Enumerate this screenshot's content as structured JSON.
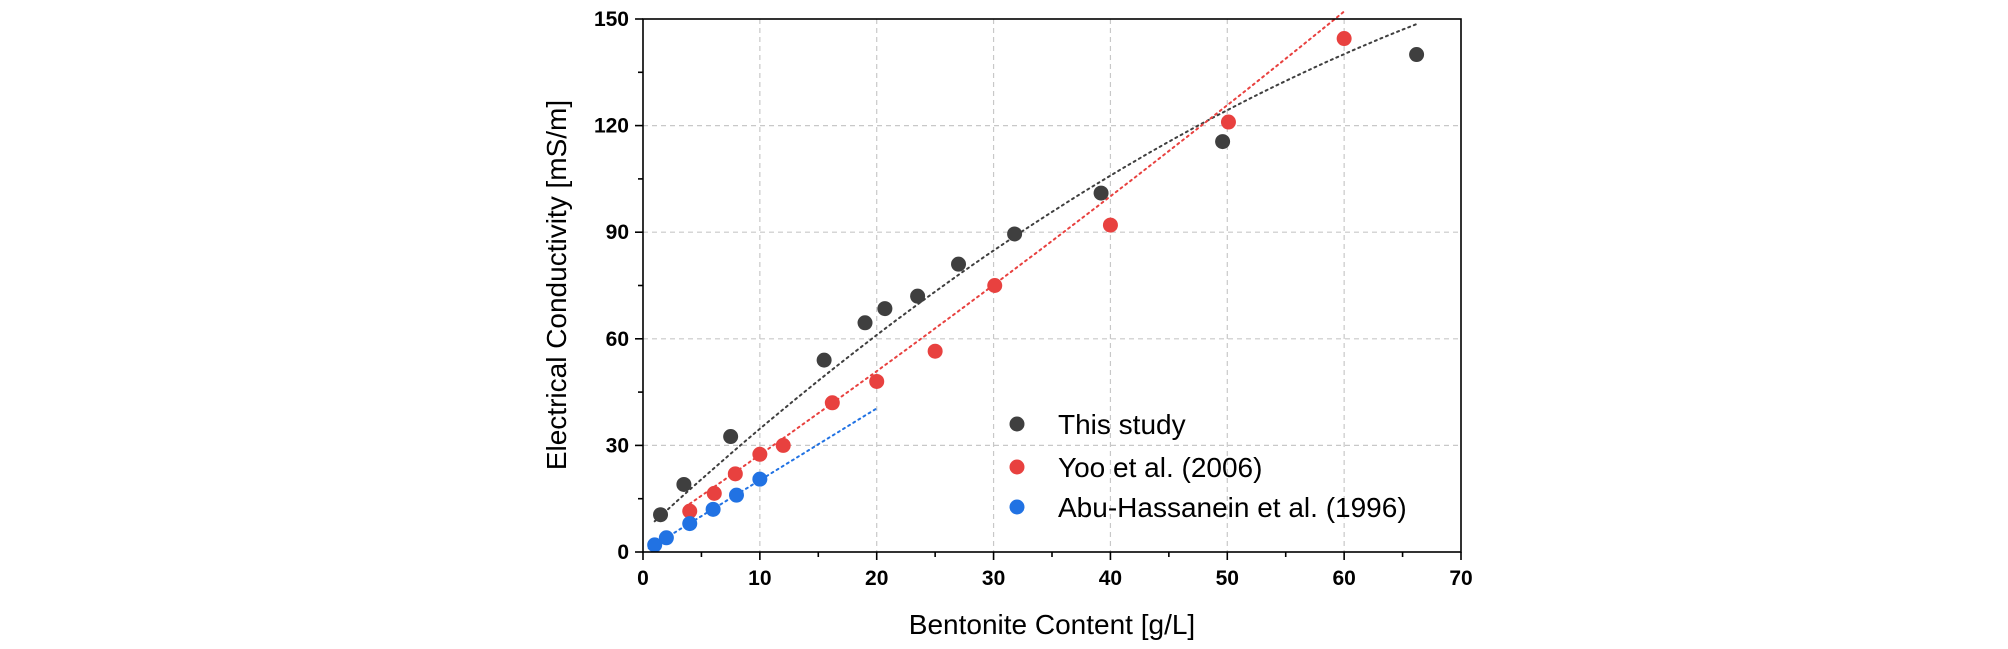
{
  "chart_data": {
    "type": "scatter",
    "xlabel": "Bentonite Content [g/L]",
    "ylabel": "Electrical Conductivity [mS/m]",
    "xlim": [
      0,
      70
    ],
    "ylim": [
      0,
      150
    ],
    "xticks": [
      0,
      10,
      20,
      30,
      40,
      50,
      60,
      70
    ],
    "yticks": [
      0,
      30,
      60,
      90,
      120,
      150
    ],
    "grid": true,
    "legend_position": "bottom-right",
    "series": [
      {
        "name": "This study",
        "color": "#3f3f3f",
        "x": [
          1.5,
          3.5,
          7.5,
          15.5,
          19.0,
          20.7,
          23.5,
          27.0,
          31.8,
          39.2,
          49.6,
          66.2
        ],
        "y": [
          10.5,
          19.0,
          32.5,
          54.0,
          64.5,
          68.5,
          72.0,
          81.0,
          89.5,
          101.0,
          115.5,
          140.0
        ],
        "trend": {
          "x_start": 1.0,
          "x_end": 66.2,
          "coeffs": [
            5.6,
            3.04,
            -0.0133
          ]
        }
      },
      {
        "name": "Yoo et al. (2006)",
        "color": "#e8413f",
        "x": [
          4.0,
          6.1,
          7.9,
          10.0,
          12.0,
          16.2,
          20.0,
          25.0,
          30.1,
          40.0,
          50.1,
          60.0
        ],
        "y": [
          11.5,
          16.5,
          22.0,
          27.5,
          30.0,
          42.0,
          48.0,
          56.5,
          75.0,
          92.0,
          121.0,
          144.5
        ],
        "trend": {
          "x_start": 4.0,
          "x_end": 60.0,
          "coeffs": [
            4.5,
            2.25,
            0.0035
          ]
        }
      },
      {
        "name": "Abu-Hassanein et al. (1996)",
        "color": "#2172e3",
        "x": [
          1.0,
          2.0,
          4.0,
          6.0,
          8.0,
          10.0
        ],
        "y": [
          2.0,
          4.0,
          8.0,
          12.0,
          16.0,
          20.5
        ],
        "trend": {
          "x_start": 0.5,
          "x_end": 20.0,
          "coeffs": [
            0.0,
            2.02,
            0.0
          ]
        }
      }
    ]
  }
}
